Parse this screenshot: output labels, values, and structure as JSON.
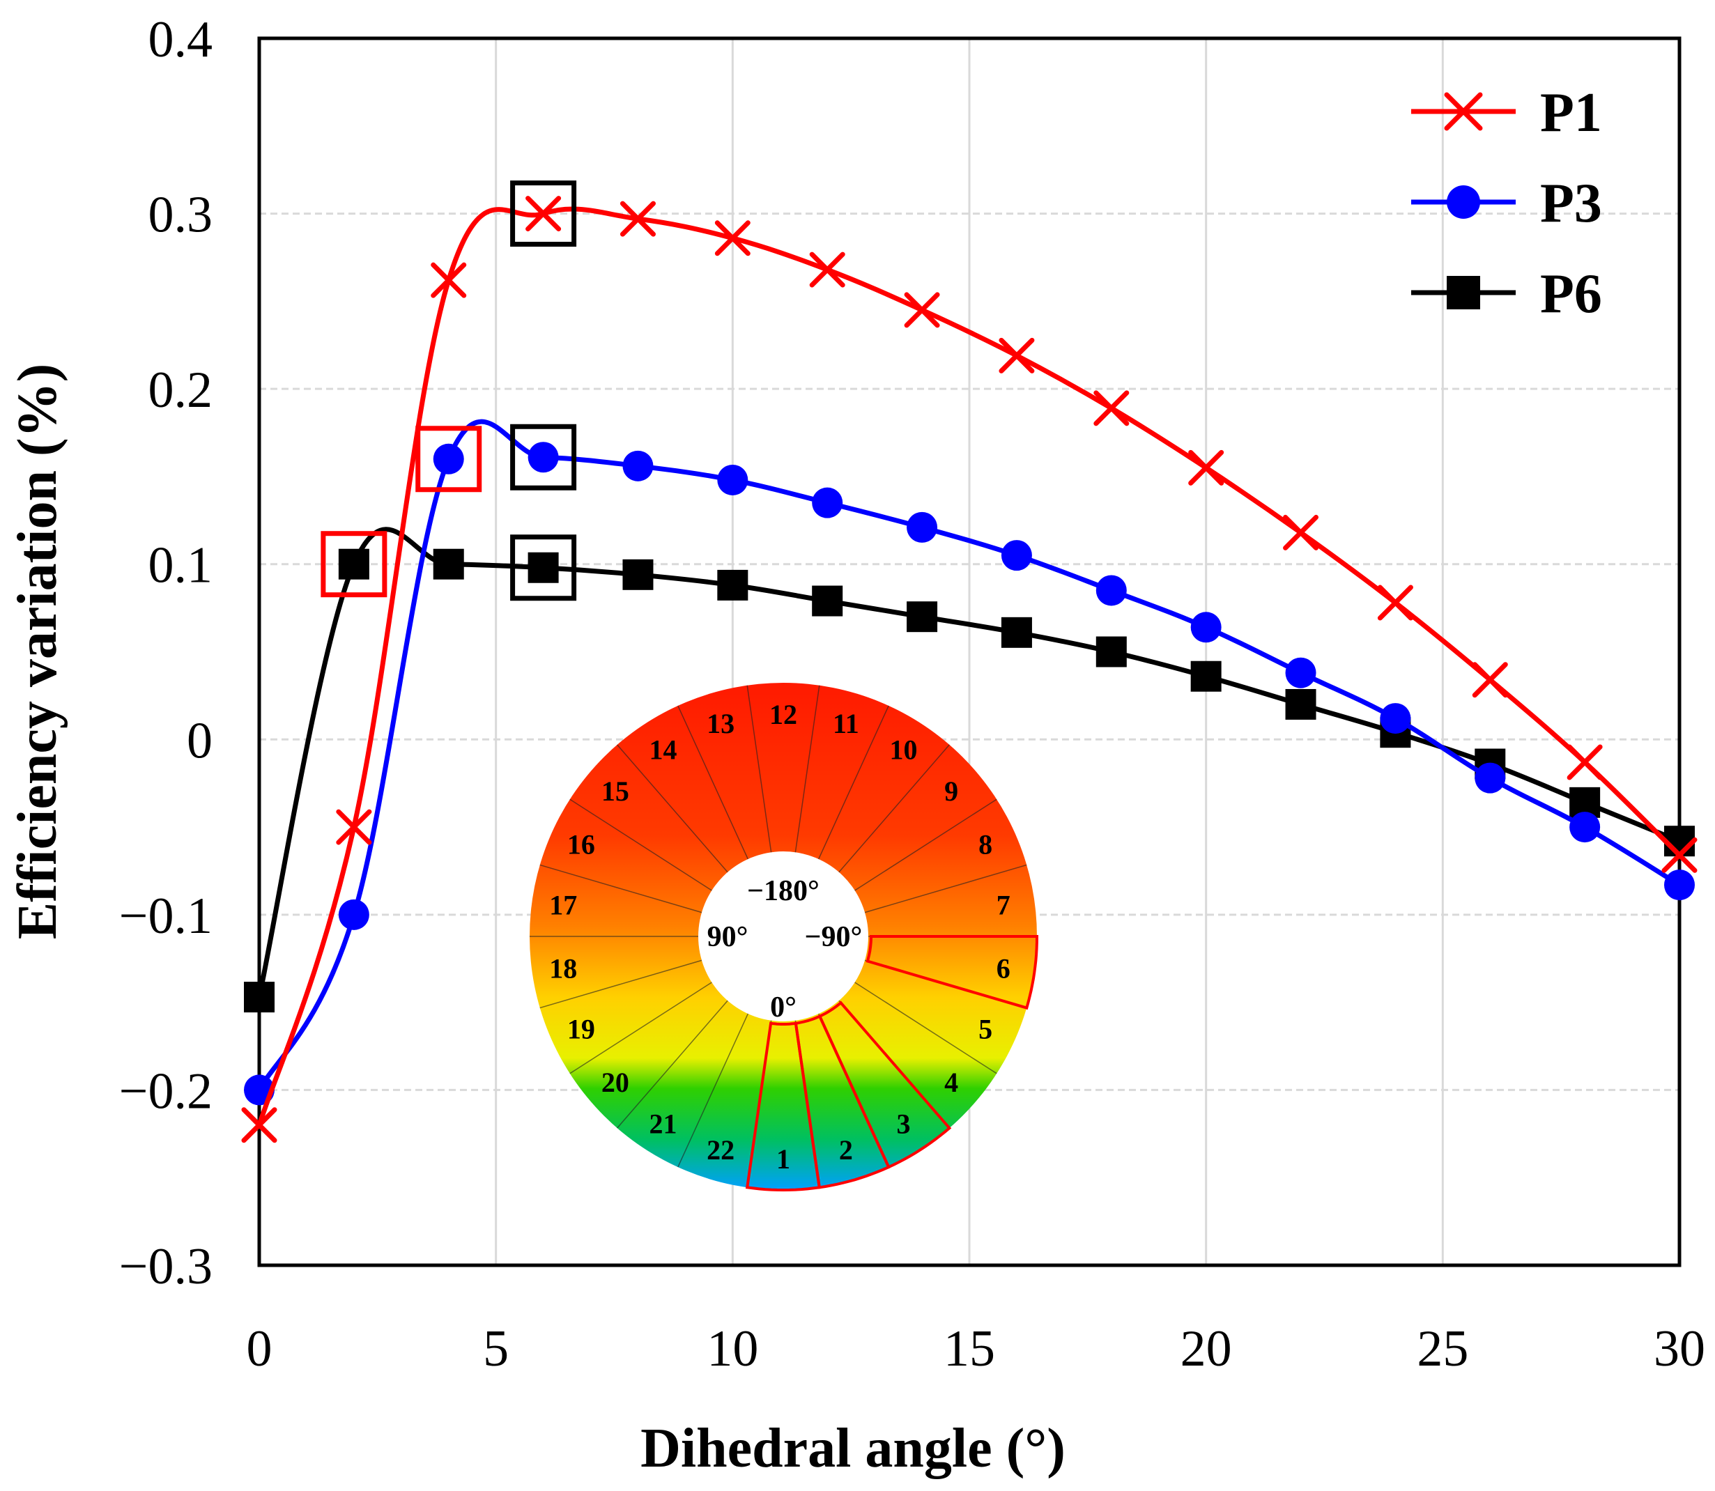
{
  "chart_data": {
    "type": "line",
    "title": "",
    "xlabel": "Dihedral angle (°)",
    "ylabel": "Efficiency variation (%)",
    "xlim": [
      0,
      30
    ],
    "ylim": [
      -0.3,
      0.4
    ],
    "xticks": [
      0,
      5,
      10,
      15,
      20,
      25,
      30
    ],
    "yticks": [
      -0.3,
      -0.2,
      -0.1,
      0,
      0.1,
      0.2,
      0.3,
      0.4
    ],
    "xtick_labels": [
      "0",
      "5",
      "10",
      "15",
      "20",
      "25",
      "30"
    ],
    "ytick_labels": [
      "−0.3",
      "−0.2",
      "−0.1",
      "0",
      "0.1",
      "0.2",
      "0.3",
      "0.4"
    ],
    "grid": true,
    "legend_position": "top-right",
    "x": [
      0,
      2,
      4,
      6,
      8,
      10,
      12,
      14,
      16,
      18,
      20,
      22,
      24,
      26,
      28,
      30
    ],
    "series": [
      {
        "name": "P1",
        "color": "#ff0000",
        "marker": "x",
        "values": [
          -0.22,
          -0.05,
          0.262,
          0.3,
          0.297,
          0.286,
          0.268,
          0.245,
          0.219,
          0.189,
          0.155,
          0.118,
          0.078,
          0.034,
          -0.013,
          -0.066
        ],
        "highlighted_x": [
          6
        ],
        "highlight_colors": [
          "#000000"
        ]
      },
      {
        "name": "P3",
        "color": "#0000ff",
        "marker": "circle",
        "values": [
          -0.2,
          -0.1,
          0.16,
          0.161,
          0.156,
          0.148,
          0.135,
          0.121,
          0.105,
          0.085,
          0.064,
          0.038,
          0.012,
          -0.022,
          -0.05,
          -0.083
        ],
        "highlighted_x": [
          4,
          6
        ],
        "highlight_colors": [
          "#ff0000",
          "#000000"
        ]
      },
      {
        "name": "P6",
        "color": "#000000",
        "marker": "square",
        "values": [
          -0.147,
          0.1,
          0.1,
          0.098,
          0.094,
          0.088,
          0.079,
          0.07,
          0.061,
          0.05,
          0.036,
          0.02,
          0.004,
          -0.014,
          -0.036,
          -0.058
        ],
        "highlighted_x": [
          2,
          6
        ],
        "highlight_colors": [
          "#ff0000",
          "#000000"
        ]
      }
    ],
    "inset": {
      "type": "annular-segment-map",
      "segment_labels": [
        "1",
        "2",
        "3",
        "4",
        "5",
        "6",
        "7",
        "8",
        "9",
        "10",
        "11",
        "12",
        "13",
        "14",
        "15",
        "16",
        "17",
        "18",
        "19",
        "20",
        "21",
        "22"
      ],
      "center_labels": {
        "top": "−180°",
        "left": "90°",
        "right": "−90°",
        "bottom": "0°"
      },
      "highlighted_segments": [
        "1",
        "2",
        "3",
        "6"
      ],
      "highlight_color": "#ff0000"
    }
  }
}
